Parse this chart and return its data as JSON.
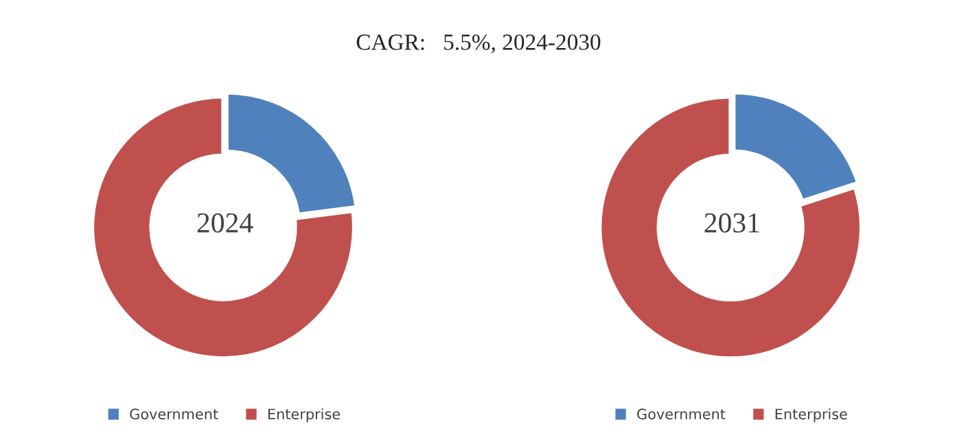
{
  "chart_data": [
    {
      "type": "donut",
      "title": "CAGR:   5.5%, 2024-2030",
      "categories": [
        "Government",
        "Enterprise"
      ],
      "values": [
        23,
        77
      ],
      "colors": [
        "#4f81bd",
        "#c0504d"
      ],
      "annotations": [
        "2024"
      ],
      "legend": "bottom"
    },
    {
      "type": "donut",
      "categories": [
        "Government",
        "Enterprise"
      ],
      "values": [
        20,
        80
      ],
      "colors": [
        "#4f81bd",
        "#c0504d"
      ],
      "annotations": [
        "2031"
      ],
      "legend": "bottom"
    }
  ]
}
